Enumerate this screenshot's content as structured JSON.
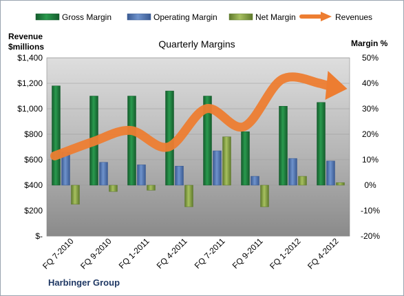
{
  "chart_data": {
    "type": "bar",
    "title": "Quarterly Margins",
    "company": "Harbinger Group",
    "y_left_label_line1": "Revenue",
    "y_left_label_line2": "$millions",
    "y_right_label": "Margin %",
    "categories": [
      "FQ 7-2010",
      "FQ 9-2010",
      "FQ 1-2011",
      "FQ 4-2011",
      "FQ 7-2011",
      "FQ 9-2011",
      "FQ 1-2012",
      "FQ 4-2012"
    ],
    "left_axis": {
      "min": 0,
      "max": 1400,
      "step": 200,
      "tick_labels": [
        "$-",
        "$200",
        "$400",
        "$600",
        "$800",
        "$1,000",
        "$1,200",
        "$1,400"
      ]
    },
    "right_axis": {
      "min": -20,
      "max": 50,
      "step": 10,
      "tick_labels": [
        "-20%",
        "-10%",
        "0%",
        "10%",
        "20%",
        "30%",
        "40%",
        "50%"
      ]
    },
    "series": [
      {
        "name": "Gross Margin",
        "axis": "right",
        "kind": "bar",
        "color": "#1e7a3c",
        "values": [
          39,
          35,
          35,
          37,
          35,
          21,
          31,
          32.5
        ]
      },
      {
        "name": "Operating Margin",
        "axis": "right",
        "kind": "bar",
        "color": "#4f74b0",
        "values": [
          13,
          9,
          8,
          7.5,
          13.5,
          3.5,
          10.5,
          9.5
        ]
      },
      {
        "name": "Net Margin",
        "axis": "right",
        "kind": "bar",
        "color": "#8aa84a",
        "values": [
          -7.5,
          -2.5,
          -2,
          -8.5,
          19,
          -8.5,
          3.5,
          1
        ]
      },
      {
        "name": "Revenues",
        "axis": "left",
        "kind": "line",
        "color": "#ed7d31",
        "values": [
          630,
          740,
          830,
          700,
          1000,
          860,
          1230,
          1200
        ]
      }
    ],
    "grid": true,
    "legend_position": "top"
  }
}
